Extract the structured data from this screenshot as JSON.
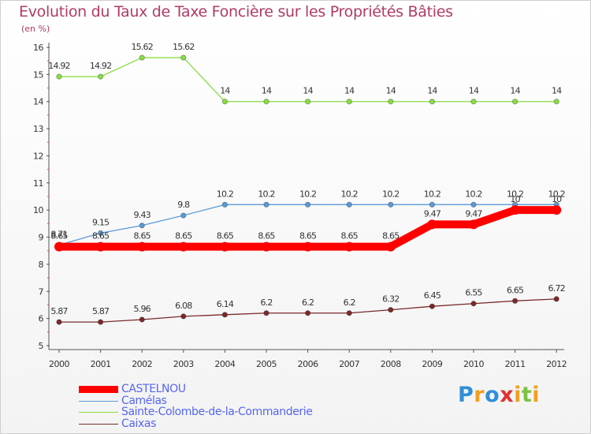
{
  "header": {
    "title": "Evolution du Taux de Taxe Foncière sur les Propriétés Bâties",
    "subtitle": "(en %)"
  },
  "chart_data": {
    "type": "line",
    "x": [
      "2000",
      "2001",
      "2002",
      "2003",
      "2004",
      "2005",
      "2006",
      "2007",
      "2008",
      "2009",
      "2010",
      "2011",
      "2012"
    ],
    "y_ticks": [
      "5",
      "6",
      "7",
      "8",
      "9",
      "10",
      "11",
      "12",
      "13",
      "14",
      "15",
      "16"
    ],
    "ylim": [
      5,
      16
    ],
    "grid": false,
    "legend_position": "bottom-left",
    "series": [
      {
        "name": "CASTELNOU",
        "color": "#ff0000",
        "values": [
          8.65,
          8.65,
          8.65,
          8.65,
          8.65,
          8.65,
          8.65,
          8.65,
          8.65,
          9.47,
          9.47,
          10,
          10
        ],
        "labels": [
          "8.65",
          "8.65",
          "8.65",
          "8.65",
          "8.65",
          "8.65",
          "8.65",
          "8.65",
          "8.65",
          "9.47",
          "9.47",
          "10",
          "10"
        ]
      },
      {
        "name": "Camélas",
        "color": "#5b9bd5",
        "values": [
          8.71,
          9.15,
          9.43,
          9.8,
          10.2,
          10.2,
          10.2,
          10.2,
          10.2,
          10.2,
          10.2,
          10.2,
          10.2
        ],
        "labels": [
          "8.71",
          "9.15",
          "9.43",
          "9.8",
          "10.2",
          "10.2",
          "10.2",
          "10.2",
          "10.2",
          "10.2",
          "10.2",
          "10.2",
          "10.2"
        ]
      },
      {
        "name": "Sainte-Colombe-de-la-Commanderie",
        "color": "#88dd44",
        "values": [
          14.92,
          14.92,
          15.62,
          15.62,
          14,
          14,
          14,
          14,
          14,
          14,
          14,
          14,
          14
        ],
        "labels": [
          "14.92",
          "14.92",
          "15.62",
          "15.62",
          "14",
          "14",
          "14",
          "14",
          "14",
          "14",
          "14",
          "14",
          "14"
        ]
      },
      {
        "name": "Caixas",
        "color": "#7a2a2a",
        "values": [
          5.87,
          5.87,
          5.96,
          6.08,
          6.14,
          6.2,
          6.2,
          6.2,
          6.32,
          6.45,
          6.55,
          6.65,
          6.72
        ],
        "labels": [
          "5.87",
          "5.87",
          "5.96",
          "6.08",
          "6.14",
          "6.2",
          "6.2",
          "6.2",
          "6.32",
          "6.45",
          "6.55",
          "6.65",
          "6.72"
        ]
      }
    ]
  },
  "logo": {
    "letters": [
      "P",
      "r",
      "o",
      "x",
      "i",
      "t",
      "i"
    ],
    "colors": [
      "#2f8fd8",
      "#f0a020",
      "#2f8fd8",
      "#e03030",
      "#f0a020",
      "#7cc242",
      "#f0a020"
    ]
  }
}
